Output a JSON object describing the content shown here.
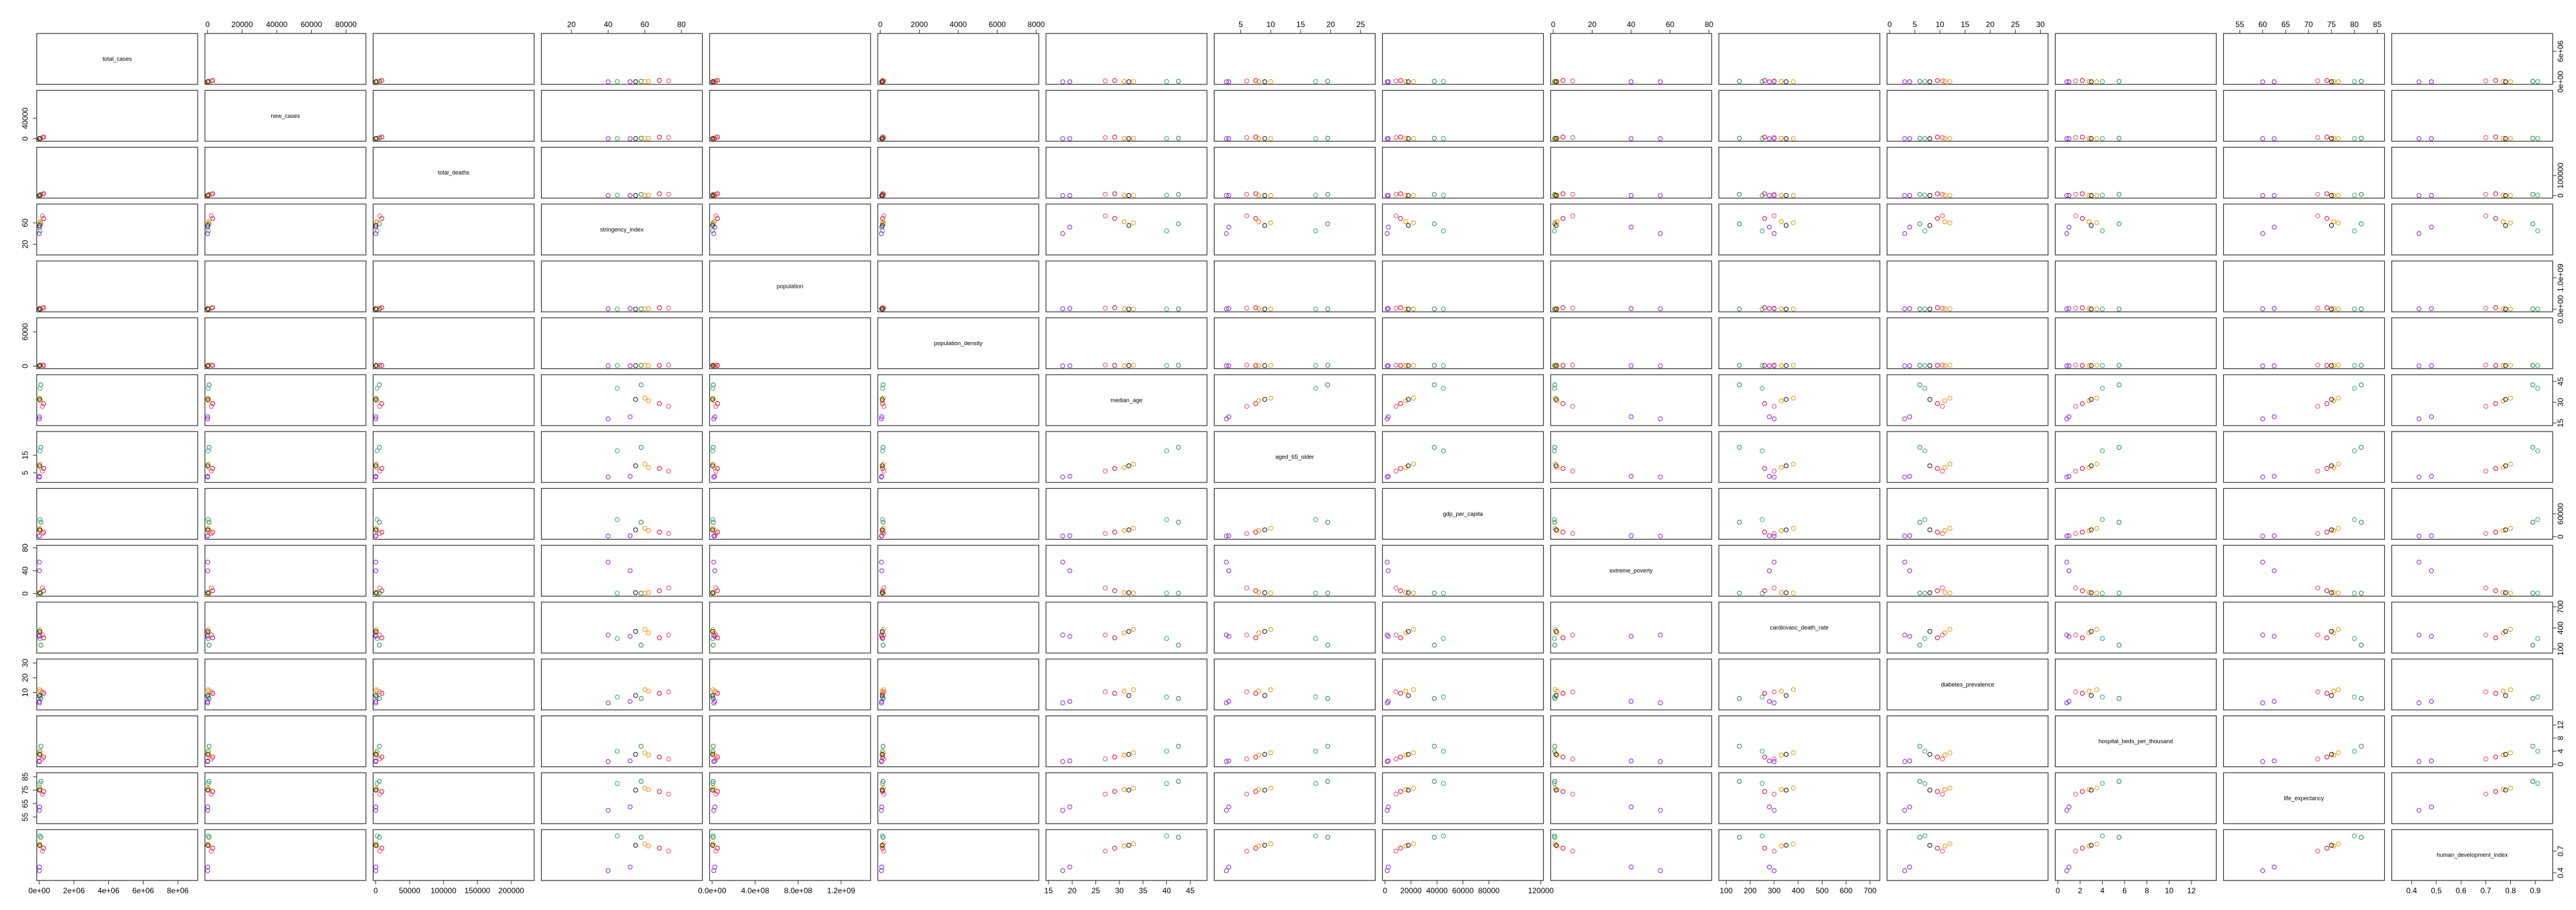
{
  "chart_data": {
    "type": "scatter",
    "title": "",
    "variables": [
      {
        "name": "total_cases",
        "range": [
          0,
          9000000
        ],
        "ticks": [
          0,
          2000000,
          4000000,
          6000000,
          8000000
        ],
        "tick_labels": [
          "0e+00",
          "2e+06",
          "4e+06",
          "6e+06",
          "8e+06"
        ]
      },
      {
        "name": "new_cases",
        "range": [
          0,
          90000
        ],
        "ticks": [
          0,
          20000,
          40000,
          60000,
          80000
        ],
        "tick_labels": [
          "0",
          "20000",
          "40000",
          "60000",
          "80000"
        ]
      },
      {
        "name": "total_deaths",
        "range": [
          0,
          230000
        ],
        "ticks": [
          0,
          50000,
          100000,
          150000,
          200000
        ],
        "tick_labels": [
          "0",
          "50000",
          "100000",
          "150000",
          "200000"
        ]
      },
      {
        "name": "stringency_index",
        "range": [
          5,
          90
        ],
        "ticks": [
          20,
          40,
          60,
          80
        ],
        "tick_labels": [
          "20",
          "40",
          "60",
          "80"
        ]
      },
      {
        "name": "population",
        "range": [
          0,
          1450000000
        ],
        "ticks": [
          0,
          400000000,
          800000000,
          1200000000
        ],
        "tick_labels": [
          "0.0e+00",
          "4.0e+08",
          "8.0e+08",
          "1.2e+09"
        ]
      },
      {
        "name": "population_density",
        "range": [
          0,
          8000
        ],
        "ticks": [
          0,
          2000,
          4000,
          6000,
          8000
        ],
        "tick_labels": [
          "0",
          "2000",
          "4000",
          "6000",
          "8000"
        ]
      },
      {
        "name": "median_age",
        "range": [
          15,
          48
        ],
        "ticks": [
          15,
          20,
          25,
          30,
          35,
          40,
          45
        ],
        "tick_labels": [
          "15",
          "20",
          "25",
          "30",
          "35",
          "40",
          "45"
        ]
      },
      {
        "name": "aged_65_older",
        "range": [
          1,
          27
        ],
        "ticks": [
          5,
          10,
          15,
          20,
          25
        ],
        "tick_labels": [
          "5",
          "10",
          "15",
          "20",
          "25"
        ]
      },
      {
        "name": "gdp_per_capita",
        "range": [
          0,
          120000
        ],
        "ticks": [
          0,
          20000,
          40000,
          60000,
          80000,
          120000
        ],
        "tick_labels": [
          "0",
          "20000",
          "40000",
          "60000",
          "80000",
          "120000"
        ]
      },
      {
        "name": "extreme_poverty",
        "range": [
          0,
          80
        ],
        "ticks": [
          0,
          20,
          40,
          60,
          80
        ],
        "tick_labels": [
          "0",
          "20",
          "40",
          "60",
          "80"
        ]
      },
      {
        "name": "cardiovasc_death_rate",
        "range": [
          80,
          730
        ],
        "ticks": [
          100,
          200,
          300,
          400,
          500,
          600,
          700
        ],
        "tick_labels": [
          "100",
          "200",
          "300",
          "400",
          "500",
          "600",
          "700"
        ]
      },
      {
        "name": "diabetes_prevalence",
        "range": [
          0,
          31
        ],
        "ticks": [
          0,
          5,
          10,
          15,
          20,
          25,
          30
        ],
        "tick_labels": [
          "0",
          "5",
          "10",
          "15",
          "20",
          "25",
          "30"
        ]
      },
      {
        "name": "hospital_beds_per_thousand",
        "range": [
          0,
          14
        ],
        "ticks": [
          0,
          2,
          4,
          6,
          8,
          10,
          12
        ],
        "tick_labels": [
          "0",
          "2",
          "4",
          "6",
          "8",
          "10",
          "12"
        ]
      },
      {
        "name": "life_expectancy",
        "range": [
          52,
          86
        ],
        "ticks": [
          55,
          60,
          65,
          70,
          75,
          80,
          85
        ],
        "tick_labels": [
          "55",
          "60",
          "65",
          "70",
          "75",
          "80",
          "85"
        ]
      },
      {
        "name": "human_development_index",
        "range": [
          0.33,
          0.96
        ],
        "ticks": [
          0.4,
          0.5,
          0.6,
          0.7,
          0.8,
          0.9
        ],
        "tick_labels": [
          "0.4",
          "0.5",
          "0.6",
          "0.7",
          "0.8",
          "0.9"
        ]
      }
    ],
    "left_axis_ticks": {
      "new_cases": [
        "0",
        "40000"
      ],
      "stringency_index": [
        "20",
        "60"
      ],
      "population_density": [
        "0",
        "6000"
      ],
      "aged_65_older": [
        "5",
        "15"
      ],
      "extreme_poverty": [
        "0",
        "40",
        "80"
      ],
      "diabetes_prevalence": [
        "10",
        "20",
        "30"
      ],
      "life_expectancy": [
        "55",
        "65",
        "75",
        "85"
      ]
    },
    "right_axis_ticks": {
      "total_cases": [
        "0e+00",
        "6e+06"
      ],
      "total_deaths": [
        "0",
        "100000"
      ],
      "population": [
        "0.0e+00",
        "1.0e+09"
      ],
      "median_age": [
        "15",
        "30",
        "45"
      ],
      "gdp_per_capita": [
        "0",
        "60000"
      ],
      "cardiovasc_death_rate": [
        "100",
        "400",
        "700"
      ],
      "hospital_beds_per_thousand": [
        "0",
        "4",
        "8",
        "12"
      ],
      "human_development_index": [
        "0.4",
        "0.7"
      ]
    },
    "groups": [
      {
        "color": "#2E8B57",
        "values": {
          "total_cases": 90000,
          "new_cases": 900,
          "total_deaths": 5500,
          "stringency_index": 58,
          "population": 10000000,
          "population_density": 140,
          "median_age": 42.5,
          "aged_65_older": 19.5,
          "gdp_per_capita": 38000,
          "extreme_poverty": 0.8,
          "cardiovasc_death_rate": 155,
          "diabetes_prevalence": 6.0,
          "hospital_beds_per_thousand": 5.5,
          "life_expectancy": 81.5,
          "human_development_index": 0.89
        }
      },
      {
        "color": "#3CB371",
        "values": {
          "total_cases": 40000,
          "new_cases": 400,
          "total_deaths": 2000,
          "stringency_index": 45,
          "population": 6000000,
          "population_density": 110,
          "median_age": 40.0,
          "aged_65_older": 17.5,
          "gdp_per_capita": 45000,
          "extreme_poverty": 0.6,
          "cardiovasc_death_rate": 250,
          "diabetes_prevalence": 7.0,
          "hospital_beds_per_thousand": 4.0,
          "life_expectancy": 80.0,
          "human_development_index": 0.91
        }
      },
      {
        "color": "#8A2BE2",
        "values": {
          "total_cases": 8000,
          "new_cases": 120,
          "total_deaths": 150,
          "stringency_index": 52,
          "population": 25000000,
          "population_density": 70,
          "median_age": 19.5,
          "aged_65_older": 3.0,
          "gdp_per_capita": 2500,
          "extreme_poverty": 40,
          "cardiovasc_death_rate": 280,
          "diabetes_prevalence": 4.0,
          "hospital_beds_per_thousand": 1.0,
          "life_expectancy": 62.5,
          "human_development_index": 0.48
        }
      },
      {
        "color": "#9932CC",
        "values": {
          "total_cases": 5000,
          "new_cases": 60,
          "total_deaths": 90,
          "stringency_index": 40,
          "population": 15000000,
          "population_density": 55,
          "median_age": 18.0,
          "aged_65_older": 2.6,
          "gdp_per_capita": 1700,
          "extreme_poverty": 55,
          "cardiovasc_death_rate": 300,
          "diabetes_prevalence": 3.0,
          "hospital_beds_per_thousand": 0.8,
          "life_expectancy": 60.0,
          "human_development_index": 0.43
        }
      },
      {
        "color": "#DC143C",
        "values": {
          "total_cases": 250000,
          "new_cases": 3000,
          "total_deaths": 9000,
          "stringency_index": 68,
          "population": 50000000,
          "population_density": 120,
          "median_age": 29.0,
          "aged_65_older": 7.5,
          "gdp_per_capita": 12000,
          "extreme_poverty": 5.0,
          "cardiovasc_death_rate": 260,
          "diabetes_prevalence": 9.5,
          "hospital_beds_per_thousand": 2.2,
          "life_expectancy": 74.0,
          "human_development_index": 0.74
        }
      },
      {
        "color": "#E75480",
        "values": {
          "total_cases": 180000,
          "new_cases": 2200,
          "total_deaths": 6000,
          "stringency_index": 73,
          "population": 35000000,
          "population_density": 180,
          "median_age": 27.0,
          "aged_65_older": 6.0,
          "gdp_per_capita": 8500,
          "extreme_poverty": 10,
          "cardiovasc_death_rate": 300,
          "diabetes_prevalence": 10.5,
          "hospital_beds_per_thousand": 1.6,
          "life_expectancy": 72.0,
          "human_development_index": 0.7
        }
      },
      {
        "color": "#FF8C00",
        "values": {
          "total_cases": 60000,
          "new_cases": 700,
          "total_deaths": 1500,
          "stringency_index": 62,
          "population": 20000000,
          "population_density": 95,
          "median_age": 31.0,
          "aged_65_older": 8.0,
          "gdp_per_capita": 16000,
          "extreme_poverty": 2.0,
          "cardiovasc_death_rate": 330,
          "diabetes_prevalence": 11.0,
          "hospital_beds_per_thousand": 2.8,
          "life_expectancy": 75.5,
          "human_development_index": 0.77
        }
      },
      {
        "color": "#DAA520",
        "values": {
          "total_cases": 30000,
          "new_cases": 350,
          "total_deaths": 600,
          "stringency_index": 60,
          "population": 8000000,
          "population_density": 160,
          "median_age": 33.0,
          "aged_65_older": 10.0,
          "gdp_per_capita": 22000,
          "extreme_poverty": 1.0,
          "cardiovasc_death_rate": 380,
          "diabetes_prevalence": 12.0,
          "hospital_beds_per_thousand": 3.5,
          "life_expectancy": 76.5,
          "human_development_index": 0.8
        }
      },
      {
        "color": "#222222",
        "values": {
          "total_cases": 20000,
          "new_cases": 200,
          "total_deaths": 300,
          "stringency_index": 55,
          "population": 5000000,
          "population_density": 100,
          "median_age": 32.0,
          "aged_65_older": 9.0,
          "gdp_per_capita": 18000,
          "extreme_poverty": 1.5,
          "cardiovasc_death_rate": 350,
          "diabetes_prevalence": 8.0,
          "hospital_beds_per_thousand": 3.0,
          "life_expectancy": 75.0,
          "human_development_index": 0.78
        }
      }
    ]
  }
}
